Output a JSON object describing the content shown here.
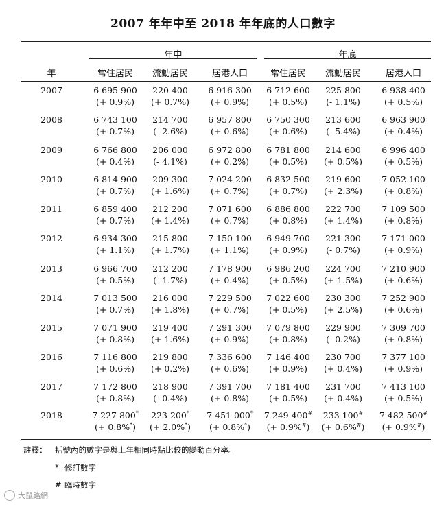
{
  "title": "2007 年年中至 2018 年年底的人口數字",
  "groups": {
    "mid": "年中",
    "end": "年底"
  },
  "year_header": "年",
  "columns": [
    "常住居民",
    "流動居民",
    "居港人口",
    "常住居民",
    "流動居民",
    "居港人口"
  ],
  "rows": [
    {
      "year": "2007",
      "v": [
        "6 695 900",
        "220 400",
        "6 916 300",
        "6 712 600",
        "225 800",
        "6 938 400"
      ],
      "p": [
        "(+ 0.9%)",
        "(+ 0.7%)",
        "(+ 0.9%)",
        "(+ 0.5%)",
        "(- 1.1%)",
        "(+ 0.5%)"
      ]
    },
    {
      "year": "2008",
      "v": [
        "6 743 100",
        "214 700",
        "6 957 800",
        "6 750 300",
        "213 600",
        "6 963 900"
      ],
      "p": [
        "(+ 0.7%)",
        "(- 2.6%)",
        "(+ 0.6%)",
        "(+ 0.6%)",
        "(- 5.4%)",
        "(+ 0.4%)"
      ]
    },
    {
      "year": "2009",
      "v": [
        "6 766 800",
        "206 000",
        "6 972 800",
        "6 781 800",
        "214 600",
        "6 996 400"
      ],
      "p": [
        "(+ 0.4%)",
        "(- 4.1%)",
        "(+ 0.2%)",
        "(+ 0.5%)",
        "(+ 0.5%)",
        "(+ 0.5%)"
      ]
    },
    {
      "year": "2010",
      "v": [
        "6 814 900",
        "209 300",
        "7 024 200",
        "6 832 500",
        "219 600",
        "7 052 100"
      ],
      "p": [
        "(+ 0.7%)",
        "(+ 1.6%)",
        "(+ 0.7%)",
        "(+ 0.7%)",
        "(+ 2.3%)",
        "(+ 0.8%)"
      ]
    },
    {
      "year": "2011",
      "v": [
        "6 859 400",
        "212 200",
        "7 071 600",
        "6 886 800",
        "222 700",
        "7 109 500"
      ],
      "p": [
        "(+ 0.7%)",
        "(+ 1.4%)",
        "(+ 0.7%)",
        "(+ 0.8%)",
        "(+ 1.4%)",
        "(+ 0.8%)"
      ]
    },
    {
      "year": "2012",
      "v": [
        "6 934 300",
        "215 800",
        "7 150 100",
        "6 949 700",
        "221 300",
        "7 171 000"
      ],
      "p": [
        "(+ 1.1%)",
        "(+ 1.7%)",
        "(+ 1.1%)",
        "(+ 0.9%)",
        "(- 0.7%)",
        "(+ 0.9%)"
      ]
    },
    {
      "year": "2013",
      "v": [
        "6 966 700",
        "212 200",
        "7 178 900",
        "6 986 200",
        "224 700",
        "7 210 900"
      ],
      "p": [
        "(+ 0.5%)",
        "(- 1.7%)",
        "(+ 0.4%)",
        "(+ 0.5%)",
        "(+ 1.5%)",
        "(+ 0.6%)"
      ]
    },
    {
      "year": "2014",
      "v": [
        "7 013 500",
        "216 000",
        "7 229 500",
        "7 022 600",
        "230 300",
        "7 252 900"
      ],
      "p": [
        "(+ 0.7%)",
        "(+ 1.8%)",
        "(+ 0.7%)",
        "(+ 0.5%)",
        "(+ 2.5%)",
        "(+ 0.6%)"
      ]
    },
    {
      "year": "2015",
      "v": [
        "7 071 900",
        "219 400",
        "7 291 300",
        "7 079 800",
        "229 900",
        "7 309 700"
      ],
      "p": [
        "(+ 0.8%)",
        "(+ 1.6%)",
        "(+ 0.9%)",
        "(+ 0.8%)",
        "(- 0.2%)",
        "(+ 0.8%)"
      ]
    },
    {
      "year": "2016",
      "v": [
        "7 116 800",
        "219 800",
        "7 336 600",
        "7 146 400",
        "230 700",
        "7 377 100"
      ],
      "p": [
        "(+ 0.6%)",
        "(+ 0.2%)",
        "(+ 0.6%)",
        "(+ 0.9%)",
        "(+ 0.4%)",
        "(+ 0.9%)"
      ]
    },
    {
      "year": "2017",
      "v": [
        "7 172 800",
        "218 900",
        "7 391 700",
        "7 181 400",
        "231 700",
        "7 413 100"
      ],
      "p": [
        "(+ 0.8%)",
        "(- 0.4%)",
        "(+ 0.8%)",
        "(+ 0.5%)",
        "(+ 0.4%)",
        "(+ 0.5%)"
      ]
    },
    {
      "year": "2018",
      "v": [
        "7 227 800",
        "223 200",
        "7 451 000",
        "7 249 400",
        "233 100",
        "7 482 500"
      ],
      "p": [
        "(+ 0.8%",
        "(+ 2.0%",
        "(+ 0.8%",
        "(+ 0.9%",
        "(+ 0.6%",
        "(+ 0.9%"
      ],
      "m": [
        "*",
        "*",
        "*",
        "#",
        "#",
        "#"
      ]
    }
  ],
  "notes": {
    "label": "註釋：",
    "text": "括號內的數字是與上年相同時點比較的變動百分率。",
    "revised_mark": "*",
    "revised": "修訂數字",
    "provisional_mark": "#",
    "provisional": "臨時數字"
  },
  "watermark": "大鼠路網"
}
